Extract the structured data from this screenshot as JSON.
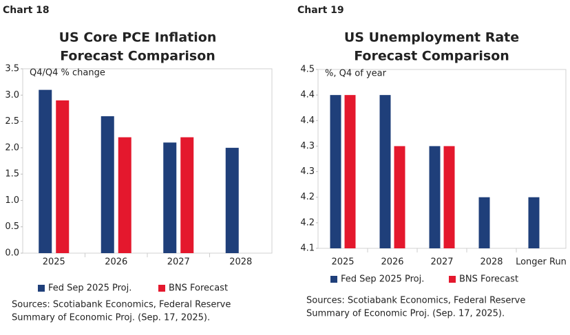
{
  "chart_data": [
    {
      "type": "bar",
      "label": "Chart 18",
      "title": [
        "US Core PCE Inflation",
        "Forecast Comparison"
      ],
      "y_label": "Q4/Q4 % change",
      "categories": [
        "2025",
        "2026",
        "2027",
        "2028"
      ],
      "series": [
        {
          "name": "Fed Sep 2025 Proj.",
          "color": "#1f3f7a",
          "values": [
            3.1,
            2.6,
            2.1,
            2.0
          ]
        },
        {
          "name": "BNS Forecast",
          "color": "#e4182d",
          "values": [
            2.9,
            2.2,
            2.2,
            null
          ]
        }
      ],
      "ylim": [
        0,
        3.5
      ],
      "yticks": [
        {
          "value": 0,
          "label": "0.0"
        },
        0.5,
        {
          "value": 1,
          "label": "1.0"
        },
        1.5,
        {
          "value": 2,
          "label": "2.0"
        },
        2.5,
        {
          "value": 3,
          "label": "3.0"
        },
        3.5
      ],
      "sources": [
        "Sources: Scotiabank Economics, Federal Reserve",
        "Summary of Economic Proj. (Sep. 17, 2025)."
      ]
    },
    {
      "type": "bar",
      "label": "Chart 19",
      "title": [
        "US Unemployment Rate",
        "Forecast Comparison"
      ],
      "y_label": "%, Q4 of year",
      "categories": [
        "2025",
        "2026",
        "2027",
        "2028",
        "Longer Run"
      ],
      "series": [
        {
          "name": "Fed Sep 2025 Proj.",
          "color": "#1f3f7a",
          "values": [
            4.4,
            4.4,
            4.3,
            4.2,
            4.2
          ]
        },
        {
          "name": "BNS Forecast",
          "color": "#e4182d",
          "values": [
            4.4,
            4.3,
            4.3,
            null,
            null
          ]
        }
      ],
      "ylim": [
        4.1,
        4.45
      ],
      "yticks": [
        4.1,
        {
          "value": 4.15,
          "label": "4.2"
        },
        4.2,
        {
          "value": 4.25,
          "label": "4.3"
        },
        4.3,
        {
          "value": 4.35,
          "label": "4.4"
        },
        4.4,
        {
          "value": 4.45,
          "label": "4.5"
        }
      ],
      "sources": [
        "Sources: Scotiabank Economics, Federal Reserve",
        "Summary of Economic Proj. (Sep. 17, 2025)."
      ]
    }
  ]
}
